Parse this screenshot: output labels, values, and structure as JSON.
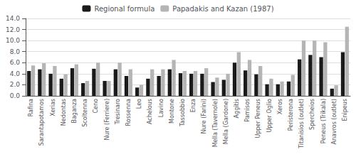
{
  "chart_data": {
    "type": "bar",
    "categories": [
      "Rafina",
      "Sarantapotamos",
      "Xerias",
      "Nedontas",
      "Baganza",
      "Scoltenna",
      "Ceno",
      "Nure (Ferriere)",
      "Tresinaro",
      "Rossenna",
      "Leo",
      "Achelous",
      "Lavino",
      "Montone",
      "Tassobbio",
      "Enza",
      "Nure (Farini)",
      "Mella (Tavernole)",
      "Mella (Gardone)",
      "Aggitis",
      "Pamisos",
      "Upper Peneus",
      "Upper Oglio",
      "Xeros",
      "Peristerona",
      "Titanisios (outlet)",
      "Spercheios",
      "Peneus (Trikala)",
      "Anavros (outlet)",
      "Enipeus"
    ],
    "series": [
      {
        "name": "Regional formula",
        "color": "#1a1a1a",
        "values": [
          4.5,
          4.8,
          4.0,
          3.1,
          5.0,
          2.3,
          4.9,
          2.7,
          4.8,
          3.6,
          1.5,
          3.1,
          3.6,
          4.8,
          4.1,
          4.0,
          4.0,
          2.5,
          2.9,
          6.0,
          4.6,
          3.9,
          2.1,
          2.1,
          2.6,
          6.6,
          7.4,
          7.0,
          1.3,
          7.9
        ]
      },
      {
        "name": "Papadakis and Kazan (1987)",
        "color": "#b5b5b5",
        "values": [
          5.5,
          5.9,
          5.4,
          3.9,
          5.7,
          2.7,
          6.0,
          2.7,
          6.0,
          4.8,
          2.0,
          4.8,
          4.8,
          6.5,
          4.5,
          4.5,
          5.0,
          3.3,
          4.0,
          7.9,
          6.5,
          5.4,
          3.1,
          2.6,
          3.8,
          10.0,
          10.0,
          9.7,
          1.9,
          12.5
        ]
      }
    ],
    "ylim": [
      0,
      14.0
    ],
    "yticks": [
      {
        "value": 0.0,
        "label": "0.0"
      },
      {
        "value": 2.0,
        "label": "2.0"
      },
      {
        "value": 4.0,
        "label": "4.0"
      },
      {
        "value": 6.0,
        "label": "6.0"
      },
      {
        "value": 8.0,
        "label": "8.0"
      },
      {
        "value": 10.0,
        "label": "10.0"
      },
      {
        "value": 12.0,
        "label": "12.0"
      },
      {
        "value": 14.0,
        "label": "14.0"
      }
    ],
    "grid": true,
    "legend": "top"
  }
}
